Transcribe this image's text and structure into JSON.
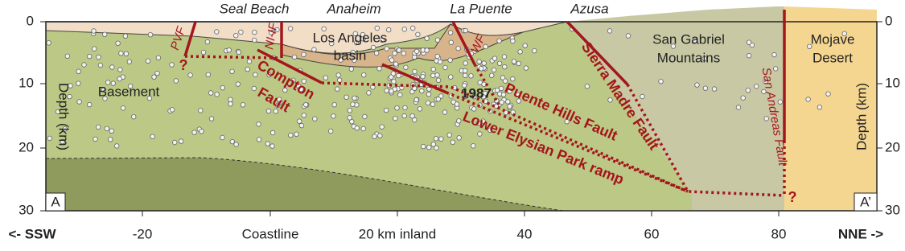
{
  "top_labels": [
    "Seal Beach",
    "Anaheim",
    "La Puente",
    "Azusa"
  ],
  "regions": {
    "basin": [
      "Los Angeles",
      "basin"
    ],
    "mountains": [
      "San Gabriel",
      "Mountains"
    ],
    "desert": [
      "Mojave",
      "Desert"
    ],
    "basement": "Basement",
    "event": "1987"
  },
  "faults": {
    "pvf": "PVF",
    "nif": "NI-IF",
    "wf": "WF",
    "compton": [
      "Compton",
      "Fault"
    ],
    "puente_hills": "Puente Hills Fault",
    "sierra_madre": "Sierra Madre Fault",
    "elysian": "Lower Elysian Park ramp",
    "san_andreas": "San Andreas Fault",
    "unknown": "?"
  },
  "axes": {
    "left_title": "Depth (km)",
    "right_title": "Depth (km)",
    "depth_ticks": [
      "0",
      "10",
      "20",
      "30"
    ],
    "bottom_labels": [
      "<- SSW",
      "-20",
      "Coastline",
      "20 km inland",
      "40",
      "60",
      "80",
      "NNE ->"
    ],
    "corner_left": "A",
    "corner_right": "A’"
  }
}
